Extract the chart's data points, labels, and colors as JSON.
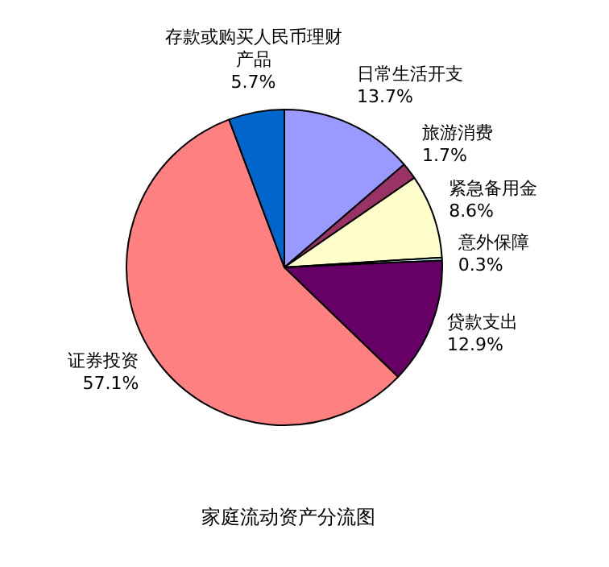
{
  "chart_data": {
    "type": "pie",
    "title": "家庭流动资产分流图",
    "categories": [
      "日常生活开支",
      "旅游消费",
      "紧急备用金",
      "意外保障",
      "贷款支出",
      "证券投资",
      "存款或购买人民币理财产品"
    ],
    "values": [
      13.7,
      1.7,
      8.6,
      0.3,
      12.9,
      57.1,
      5.7
    ],
    "value_labels": [
      "13.7%",
      "1.7%",
      "8.6%",
      "0.3%",
      "12.9%",
      "57.1%",
      "5.7%"
    ],
    "colors": [
      "#9999ff",
      "#993366",
      "#ffffcc",
      "#ccffff",
      "#660066",
      "#ff8080",
      "#0066cc"
    ],
    "legend": false
  }
}
